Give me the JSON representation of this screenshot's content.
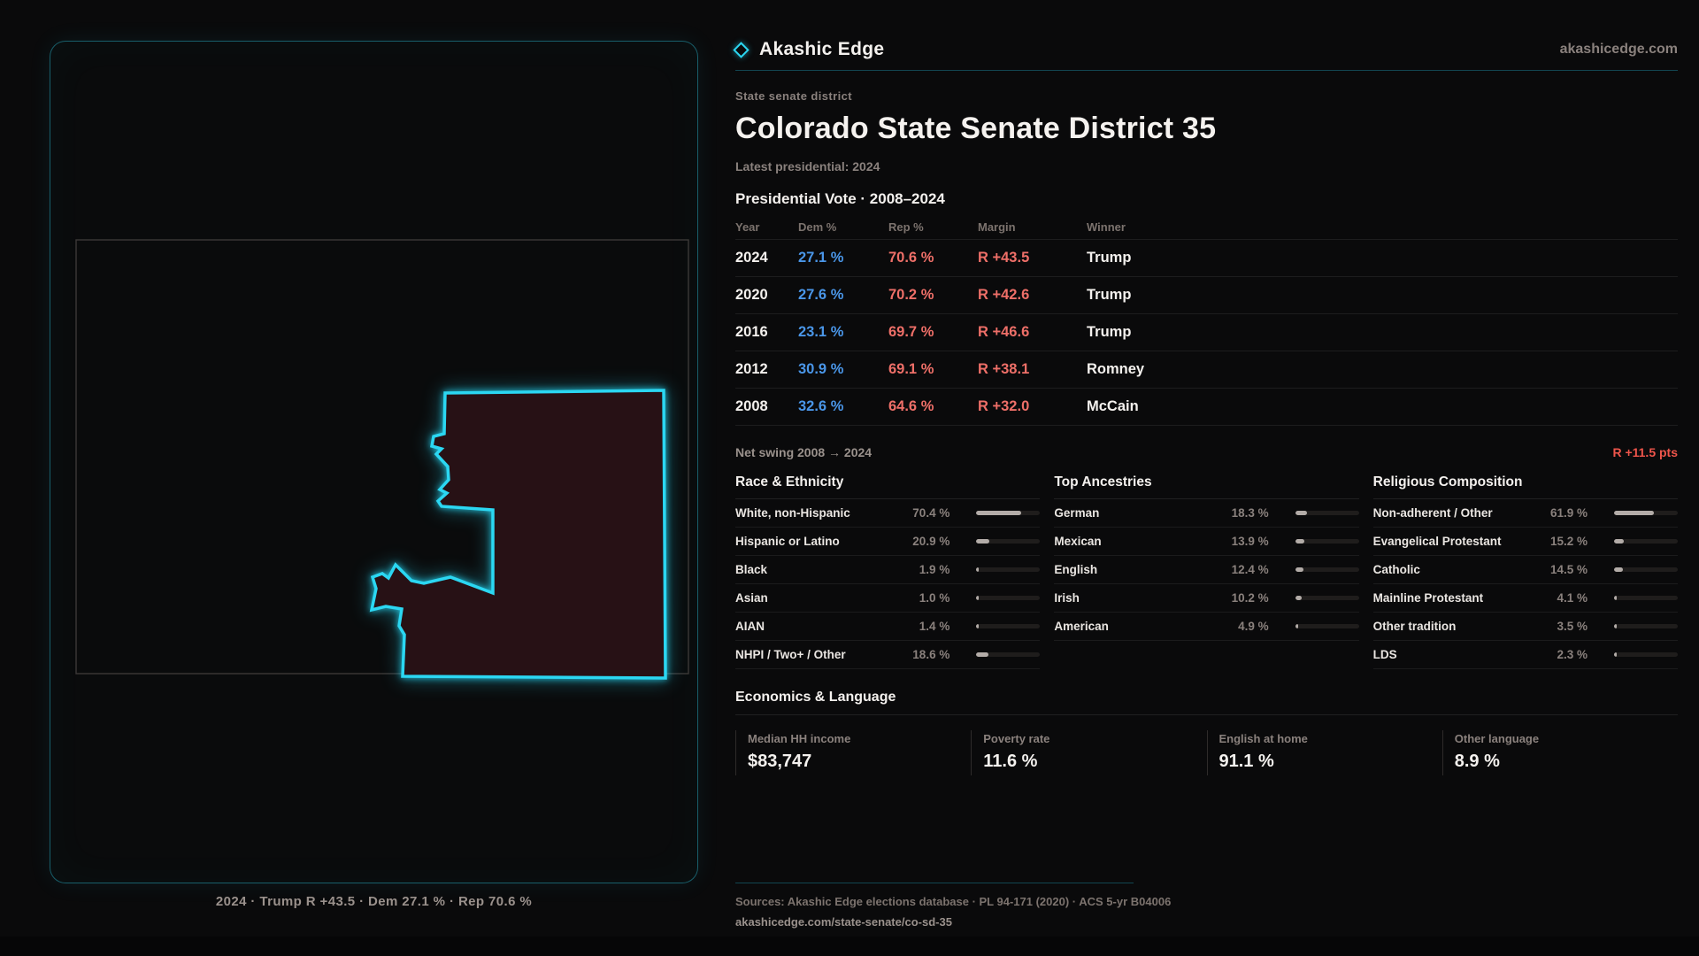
{
  "brand": {
    "name": "Akashic Edge",
    "domain": "akashicedge.com"
  },
  "map": {
    "caption": "2024 · Trump R +43.5 · Dem 27.1 % · Rep 70.6 %",
    "accent_color": "#2bd7f2",
    "fill_color": "#271115"
  },
  "title_block": {
    "kicker": "State senate district",
    "title": "Colorado State Senate District 35",
    "subtitle": "Latest presidential: 2024"
  },
  "vote_table": {
    "heading": "Presidential Vote · 2008–2024",
    "columns": [
      "Year",
      "Dem %",
      "Rep %",
      "Margin",
      "Winner"
    ],
    "dem_color": "#4a96e8",
    "rep_color": "#ee6f68",
    "rows": [
      {
        "year": "2024",
        "dem": "27.1 %",
        "rep": "70.6 %",
        "margin": "R +43.5",
        "winner": "Trump"
      },
      {
        "year": "2020",
        "dem": "27.6 %",
        "rep": "70.2 %",
        "margin": "R +42.6",
        "winner": "Trump"
      },
      {
        "year": "2016",
        "dem": "23.1 %",
        "rep": "69.7 %",
        "margin": "R +46.6",
        "winner": "Trump"
      },
      {
        "year": "2012",
        "dem": "30.9 %",
        "rep": "69.1 %",
        "margin": "R +38.1",
        "winner": "Romney"
      },
      {
        "year": "2008",
        "dem": "32.6 %",
        "rep": "64.6 %",
        "margin": "R +32.0",
        "winner": "McCain"
      }
    ]
  },
  "net_swing": {
    "label": "Net swing 2008 → 2024",
    "value": "R +11.5 pts",
    "value_color": "#ef554b"
  },
  "demographics": {
    "groups": [
      {
        "title": "Race & Ethnicity",
        "rows": [
          {
            "label": "White, non-Hispanic",
            "value": "70.4 %",
            "pct": 70.4
          },
          {
            "label": "Hispanic or Latino",
            "value": "20.9 %",
            "pct": 20.9
          },
          {
            "label": "Black",
            "value": "1.9 %",
            "pct": 1.9
          },
          {
            "label": "Asian",
            "value": "1.0 %",
            "pct": 1.0
          },
          {
            "label": "AIAN",
            "value": "1.4 %",
            "pct": 1.4
          },
          {
            "label": "NHPI / Two+ / Other",
            "value": "18.6 %",
            "pct": 18.6
          }
        ]
      },
      {
        "title": "Top Ancestries",
        "rows": [
          {
            "label": "German",
            "value": "18.3 %",
            "pct": 18.3
          },
          {
            "label": "Mexican",
            "value": "13.9 %",
            "pct": 13.9
          },
          {
            "label": "English",
            "value": "12.4 %",
            "pct": 12.4
          },
          {
            "label": "Irish",
            "value": "10.2 %",
            "pct": 10.2
          },
          {
            "label": "American",
            "value": "4.9 %",
            "pct": 4.9
          }
        ]
      },
      {
        "title": "Religious Composition",
        "rows": [
          {
            "label": "Non-adherent / Other",
            "value": "61.9 %",
            "pct": 61.9
          },
          {
            "label": "Evangelical Protestant",
            "value": "15.2 %",
            "pct": 15.2
          },
          {
            "label": "Catholic",
            "value": "14.5 %",
            "pct": 14.5
          },
          {
            "label": "Mainline Protestant",
            "value": "4.1 %",
            "pct": 4.1
          },
          {
            "label": "Other tradition",
            "value": "3.5 %",
            "pct": 3.5
          },
          {
            "label": "LDS",
            "value": "2.3 %",
            "pct": 2.3
          }
        ]
      }
    ]
  },
  "economics": {
    "heading": "Economics & Language",
    "stats": [
      {
        "label": "Median HH income",
        "value": "$83,747"
      },
      {
        "label": "Poverty rate",
        "value": "11.6 %"
      },
      {
        "label": "English at home",
        "value": "91.1 %"
      },
      {
        "label": "Other language",
        "value": "8.9 %"
      }
    ]
  },
  "footer": {
    "sources": "Sources: Akashic Edge elections database · PL 94-171 (2020) · ACS 5-yr B04006",
    "permalink": "akashicedge.com/state-senate/co-sd-35"
  }
}
